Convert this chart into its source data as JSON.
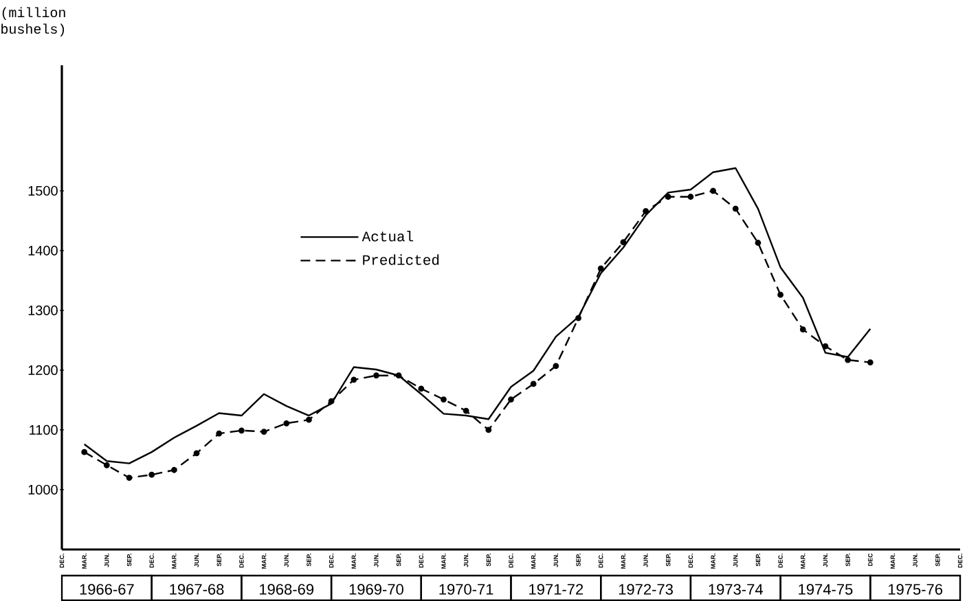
{
  "chart_data": {
    "type": "line",
    "ylabel": "(million bushels)",
    "categories": [
      "DEC.",
      "MAR.",
      "JUN.",
      "SEP.",
      "DEC.",
      "MAR.",
      "JUN.",
      "SEP.",
      "DEC.",
      "MAR.",
      "JUN.",
      "SEP.",
      "DEC.",
      "MAR.",
      "JUN.",
      "SEP.",
      "DEC.",
      "MAR.",
      "JUN.",
      "SEP.",
      "DEC.",
      "MAR.",
      "JUN.",
      "SEP.",
      "DEC.",
      "MAR.",
      "JUN.",
      "SEP.",
      "DEC.",
      "MAR.",
      "JUN.",
      "SEP.",
      "DEC.",
      "MAR.",
      "JUN.",
      "SEP.",
      "DEC",
      "MAR.",
      "JUN.",
      "SEP.",
      "DEC."
    ],
    "series": [
      {
        "name": "Actual",
        "color": "#000000",
        "line_style": "solid",
        "marker": "none",
        "values": [
          null,
          1076,
          1048,
          1044,
          1063,
          1087,
          1107,
          1128,
          1124,
          1160,
          1140,
          1124,
          1144,
          1205,
          1201,
          1191,
          1160,
          1127,
          1124,
          1118,
          1172,
          1199,
          1256,
          1289,
          1362,
          1405,
          1459,
          1497,
          1502,
          1531,
          1538,
          1470,
          1372,
          1321,
          1229,
          1222,
          1269,
          null,
          null,
          null,
          null
        ]
      },
      {
        "name": "Predicted",
        "color": "#000000",
        "line_style": "dashed",
        "marker": "circle",
        "values": [
          null,
          1063,
          1041,
          1020,
          1025,
          1033,
          1061,
          1094,
          1099,
          1097,
          1111,
          1117,
          1148,
          1184,
          1191,
          1191,
          1169,
          1151,
          1132,
          1100,
          1151,
          1177,
          1207,
          1287,
          1370,
          1414,
          1466,
          1490,
          1490,
          1500,
          1470,
          1413,
          1326,
          1268,
          1240,
          1217,
          1213,
          null,
          null,
          null,
          null
        ]
      }
    ],
    "ylim": [
      900,
      1710
    ],
    "yticks": [
      1000,
      1100,
      1200,
      1300,
      1400,
      1500
    ],
    "legend": "top left",
    "annotations": [
      "1966-67",
      "1967-68",
      "1968-69",
      "1969-70",
      "1970-71",
      "1971-72",
      "1972-73",
      "1973-74",
      "1974-75",
      "1975-76"
    ]
  }
}
